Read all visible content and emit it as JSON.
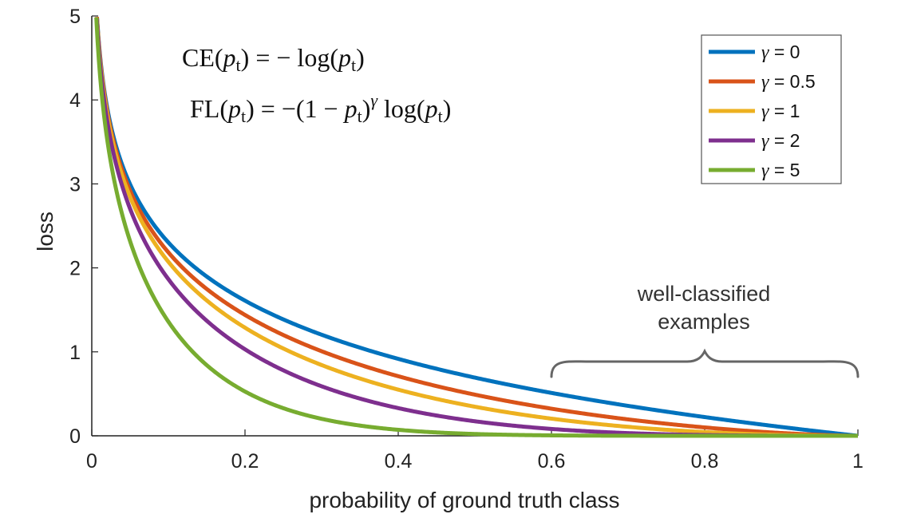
{
  "chart_data": {
    "type": "line",
    "title": "",
    "xlabel": "probability of ground truth class",
    "ylabel": "loss",
    "xlim": [
      0,
      1
    ],
    "ylim": [
      0,
      5
    ],
    "xticks": [
      0,
      0.2,
      0.4,
      0.6,
      0.8,
      1
    ],
    "xtick_labels": [
      "0",
      "0.2",
      "0.4",
      "0.6",
      "0.8",
      "1"
    ],
    "yticks": [
      0,
      1,
      2,
      3,
      4,
      5
    ],
    "ytick_labels": [
      "0",
      "1",
      "2",
      "3",
      "4",
      "5"
    ],
    "grid": false,
    "legend_position": "top-right",
    "x": [
      0.01,
      0.02,
      0.03,
      0.05,
      0.1,
      0.15,
      0.2,
      0.3,
      0.4,
      0.5,
      0.6,
      0.7,
      0.8,
      0.9,
      1.0
    ],
    "series": [
      {
        "name": "γ = 0",
        "gamma": 0,
        "color": "#0072BD",
        "values": [
          4.61,
          3.91,
          3.51,
          3.0,
          2.3,
          1.9,
          1.61,
          1.2,
          0.92,
          0.69,
          0.51,
          0.36,
          0.22,
          0.11,
          0.0
        ]
      },
      {
        "name": "γ = 0.5",
        "gamma": 0.5,
        "color": "#D95319",
        "values": [
          4.58,
          3.87,
          3.46,
          2.92,
          2.18,
          1.75,
          1.44,
          1.01,
          0.71,
          0.49,
          0.32,
          0.19,
          0.1,
          0.03,
          0.0
        ]
      },
      {
        "name": "γ = 1",
        "gamma": 1,
        "color": "#EDB120",
        "values": [
          4.56,
          3.83,
          3.4,
          2.85,
          2.07,
          1.61,
          1.29,
          0.84,
          0.55,
          0.35,
          0.2,
          0.11,
          0.04,
          0.01,
          0.0
        ]
      },
      {
        "name": "γ = 2",
        "gamma": 2,
        "color": "#7E2F8E",
        "values": [
          4.52,
          3.76,
          3.3,
          2.71,
          1.87,
          1.38,
          1.03,
          0.59,
          0.33,
          0.17,
          0.08,
          0.03,
          0.01,
          0.0,
          0.0
        ]
      },
      {
        "name": "γ = 5",
        "gamma": 5,
        "color": "#77AC30",
        "values": [
          4.38,
          3.54,
          3.02,
          2.32,
          1.36,
          0.84,
          0.53,
          0.2,
          0.07,
          0.02,
          0.01,
          0.0,
          0.0,
          0.0,
          0.0
        ]
      }
    ],
    "equations": {
      "ce": "CE(pt) = − log(pt)",
      "fl": "FL(pt) = −(1 − pt)γ log(pt)"
    },
    "annotation": {
      "line1": "well-classified",
      "line2": "examples",
      "x_range": [
        0.6,
        1.0
      ]
    }
  },
  "legend": {
    "items": [
      {
        "symbol": "γ",
        "text": " = 0"
      },
      {
        "symbol": "γ",
        "text": " = 0.5"
      },
      {
        "symbol": "γ",
        "text": " = 1"
      },
      {
        "symbol": "γ",
        "text": " = 2"
      },
      {
        "symbol": "γ",
        "text": " = 5"
      }
    ]
  }
}
